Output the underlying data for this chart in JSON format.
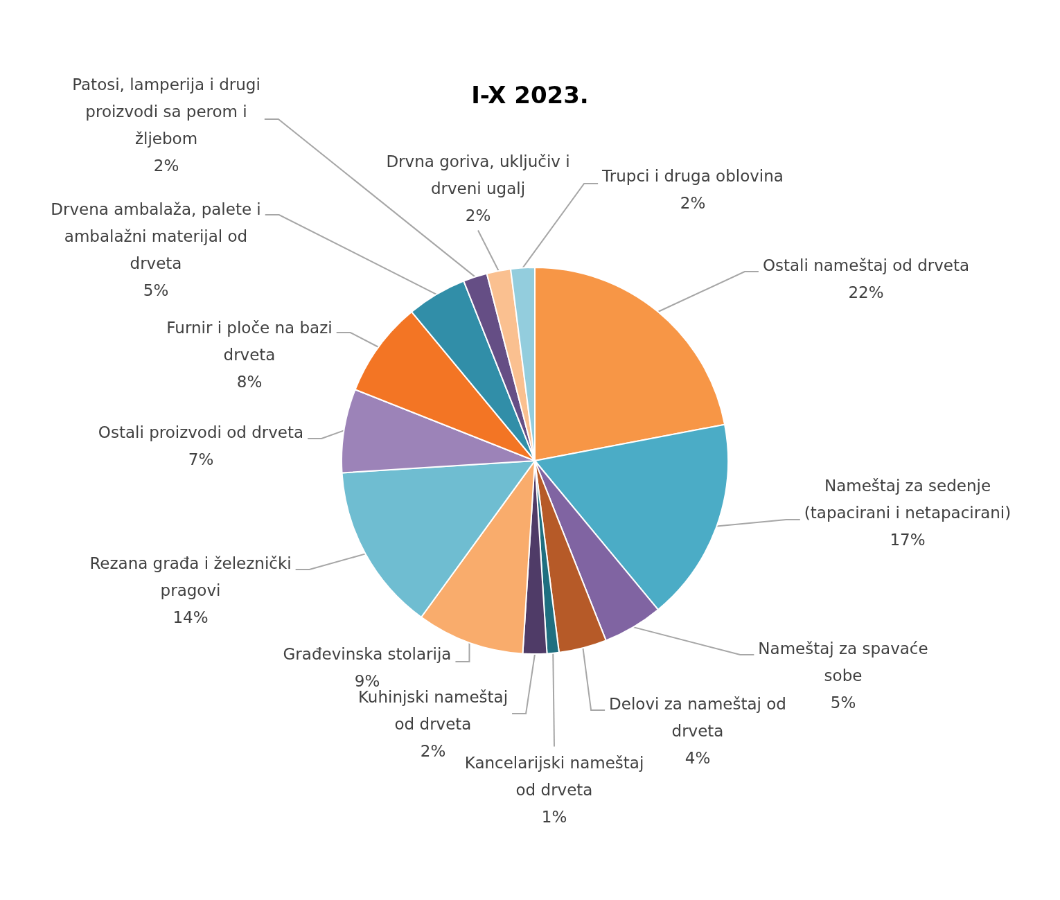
{
  "chart_data": {
    "type": "pie",
    "title": "I-X 2023.",
    "categories": [
      "Ostali nameštaj od drveta",
      "Nameštaj za sedenje (tapacirani i netapacirani)",
      "Nameštaj za spavaće sobe",
      "Delovi za nameštaj od drveta",
      "Kancelarijski nameštaj od drveta",
      "Kuhinjski nameštaj od drveta",
      "Građevinska stolarija",
      "Rezana građa i železnički pragovi",
      "Ostali proizvodi od drveta",
      "Furnir i ploče na bazi drveta",
      "Drvena ambalaža, palete i ambalažni materijal od drveta",
      "Patosi, lamperija i drugi proizvodi sa perom i žljebom",
      "Drvna goriva, uključiv i drveni ugalj",
      "Trupci i druga oblovina"
    ],
    "values": [
      22,
      17,
      5,
      4,
      1,
      2,
      9,
      14,
      7,
      8,
      5,
      2,
      2,
      2
    ],
    "value_labels": [
      "22%",
      "17%",
      "5%",
      "4%",
      "1%",
      "2%",
      "9%",
      "14%",
      "7%",
      "8%",
      "5%",
      "2%",
      "2%",
      "2%"
    ],
    "colors": [
      "#f79646",
      "#4bacc6",
      "#8064a2",
      "#b65a28",
      "#1f6f80",
      "#4f3b67",
      "#f9ac6c",
      "#6fbdd1",
      "#9c83b8",
      "#f37524",
      "#318ea8",
      "#654e85",
      "#fac090",
      "#93cddd"
    ],
    "legend": false
  }
}
